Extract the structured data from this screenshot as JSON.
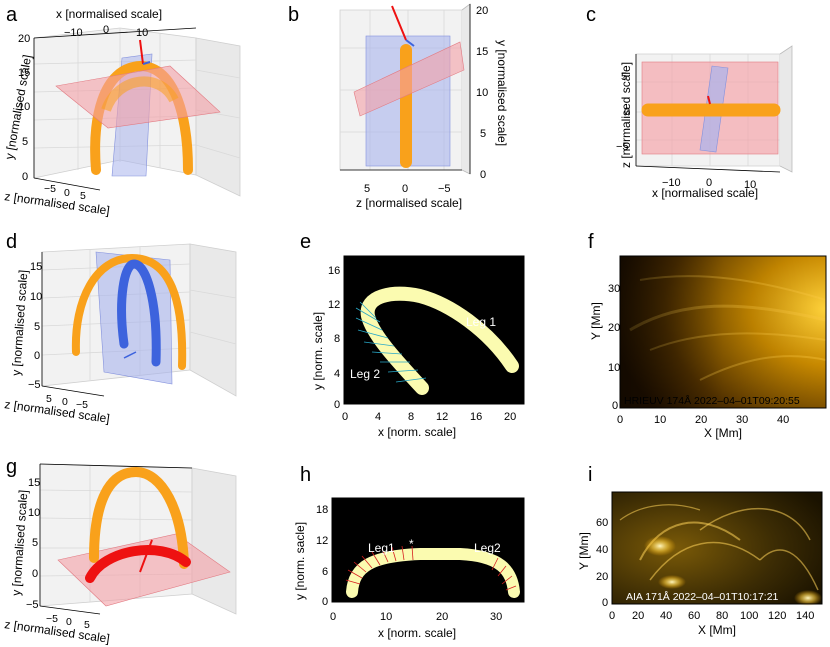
{
  "panels": {
    "a": {
      "label": "a",
      "x_axis_label": "x [normalised scale]",
      "y_axis_label": "y [normalised scale]",
      "z_axis_label": "z [normalised scale]",
      "x_ticks": [
        "−10",
        "0",
        "10"
      ],
      "y_ticks": [
        "0",
        "5",
        "10",
        "15",
        "20"
      ],
      "z_ticks": [
        "−5",
        "0",
        "5"
      ]
    },
    "b": {
      "label": "b",
      "z_axis_label": "z [normalised scale]",
      "y_axis_label": "y [normalised scale]",
      "z_ticks": [
        "5",
        "0",
        "−5"
      ],
      "y_ticks": [
        "0",
        "5",
        "10",
        "15",
        "20"
      ]
    },
    "c": {
      "label": "c",
      "x_axis_label": "x [normalised scale]",
      "z_axis_label": "z [normalised scale]",
      "x_ticks": [
        "−10",
        "0",
        "10"
      ],
      "z_ticks": [
        "5",
        "0",
        "−5"
      ]
    },
    "d": {
      "label": "d",
      "y_axis_label": "y [normalised scale]",
      "z_axis_label": "z [normalised scale]",
      "y_ticks": [
        "−5",
        "0",
        "5",
        "10",
        "15"
      ],
      "z_ticks": [
        "5",
        "0",
        "−5"
      ]
    },
    "e": {
      "label": "e",
      "x_axis_label": "x [norm. scale]",
      "y_axis_label": "y [norm. scale]",
      "x_ticks": [
        "0",
        "4",
        "8",
        "12",
        "16",
        "20"
      ],
      "y_ticks": [
        "0",
        "4",
        "8",
        "12",
        "16"
      ],
      "annotations": [
        "Leg 1",
        "Leg 2"
      ]
    },
    "f": {
      "label": "f",
      "x_axis_label": "X [Mm]",
      "y_axis_label": "Y [Mm]",
      "x_ticks": [
        "0",
        "10",
        "20",
        "30",
        "40"
      ],
      "y_ticks": [
        "0",
        "10",
        "20",
        "30"
      ],
      "caption": "HRIEUV 174Å 2022–04–01T09:20:55"
    },
    "g": {
      "label": "g",
      "y_axis_label": "y [normalised scale]",
      "z_axis_label": "z [normalised scale]",
      "y_ticks": [
        "−5",
        "0",
        "5",
        "10",
        "15"
      ],
      "z_ticks": [
        "−5",
        "0",
        "5"
      ]
    },
    "h": {
      "label": "h",
      "x_axis_label": "x [norm. scale]",
      "y_axis_label": "y [norm. sacle]",
      "x_ticks": [
        "0",
        "10",
        "20",
        "30"
      ],
      "y_ticks": [
        "0",
        "6",
        "12",
        "18"
      ],
      "annotations": [
        "Leg1",
        "Leg2",
        "*"
      ]
    },
    "i": {
      "label": "i",
      "x_axis_label": "X [Mm]",
      "y_axis_label": "Y [Mm]",
      "x_ticks": [
        "0",
        "20",
        "40",
        "60",
        "80",
        "100",
        "120",
        "140"
      ],
      "y_ticks": [
        "0",
        "20",
        "40",
        "60"
      ],
      "caption": "AIA 171Å 2022–04–01T10:17:21"
    }
  },
  "colors": {
    "loop_orange": "#f9a11b",
    "loop_red": "#ee1111",
    "plane_red": "#f4a0a6",
    "plane_blue": "#a9b4ec",
    "flux_blue": "#3d63dd",
    "loop_cream": "#fbfbb0",
    "solar_gold": "#e8a000"
  }
}
